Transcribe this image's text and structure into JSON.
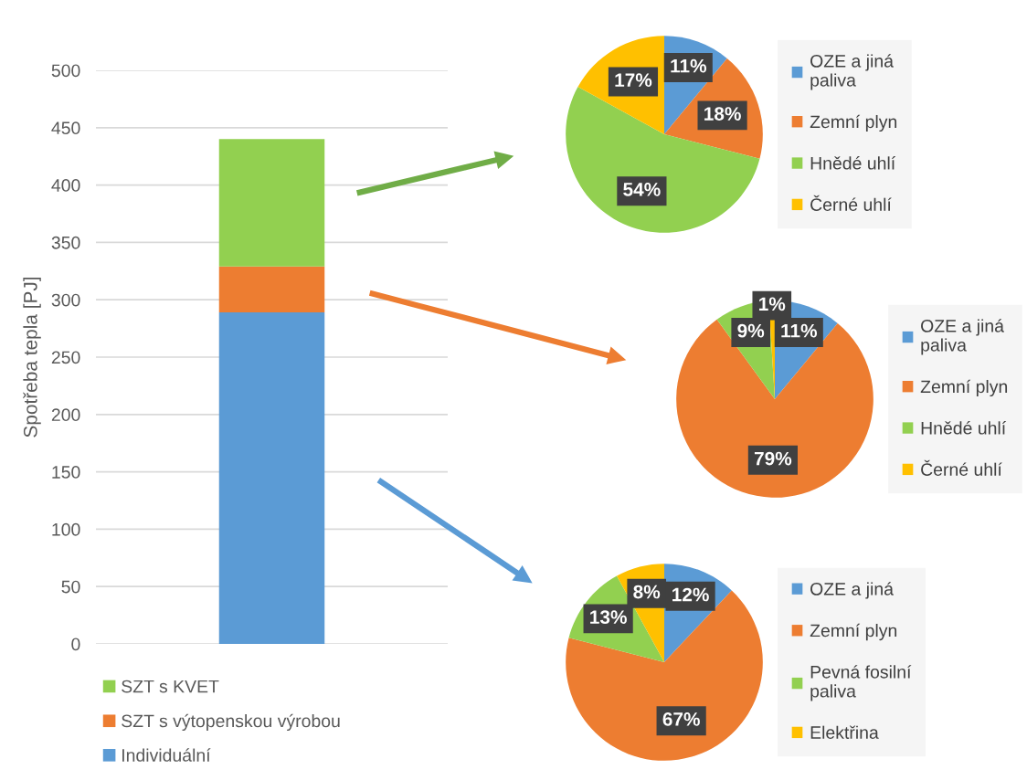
{
  "chart_data": [
    {
      "type": "bar",
      "stacked": true,
      "ylabel": "Spotřeba tepla [PJ]",
      "categories": [
        null
      ],
      "ylim": [
        0,
        500
      ],
      "yticks": [
        0,
        50,
        100,
        150,
        200,
        250,
        300,
        350,
        400,
        450,
        500
      ],
      "grid": "y",
      "legend": "bottom",
      "tick_labels": "y",
      "series": [
        {
          "name": "Individuální",
          "color": "#5b9bd5",
          "values": [
            289
          ]
        },
        {
          "name": "SZT s výtopenskou výrobou",
          "color": "#ed7d31",
          "values": [
            40
          ]
        },
        {
          "name": "SZT s KVET",
          "color": "#92d050",
          "values": [
            111
          ]
        }
      ]
    },
    {
      "type": "pie",
      "legend": "right",
      "categories": [
        "OZE a jiná paliva",
        "Zemní plyn",
        "Hnědé uhlí",
        "Černé uhlí"
      ],
      "values": [
        11,
        18,
        54,
        17
      ],
      "colors": [
        "#5b9bd5",
        "#ed7d31",
        "#92d050",
        "#ffc000"
      ],
      "value_labels": [
        "11%",
        "18%",
        "54%",
        "17%"
      ]
    },
    {
      "type": "pie",
      "legend": "right",
      "categories": [
        "OZE a jiná paliva",
        "Zemní plyn",
        "Hnědé uhlí",
        "Černé uhlí"
      ],
      "values": [
        11,
        79,
        9,
        1
      ],
      "colors": [
        "#5b9bd5",
        "#ed7d31",
        "#92d050",
        "#ffc000"
      ],
      "value_labels": [
        "11%",
        "79%",
        "9%",
        "1%"
      ]
    },
    {
      "type": "pie",
      "legend": "right",
      "categories": [
        "OZE a jiná",
        "Zemní plyn",
        "Pevná fosilní paliva",
        "Elektřina"
      ],
      "values": [
        12,
        67,
        13,
        8
      ],
      "colors": [
        "#5b9bd5",
        "#ed7d31",
        "#92d050",
        "#ffc000"
      ],
      "value_labels": [
        "12%",
        "67%",
        "13%",
        "8%"
      ]
    }
  ]
}
